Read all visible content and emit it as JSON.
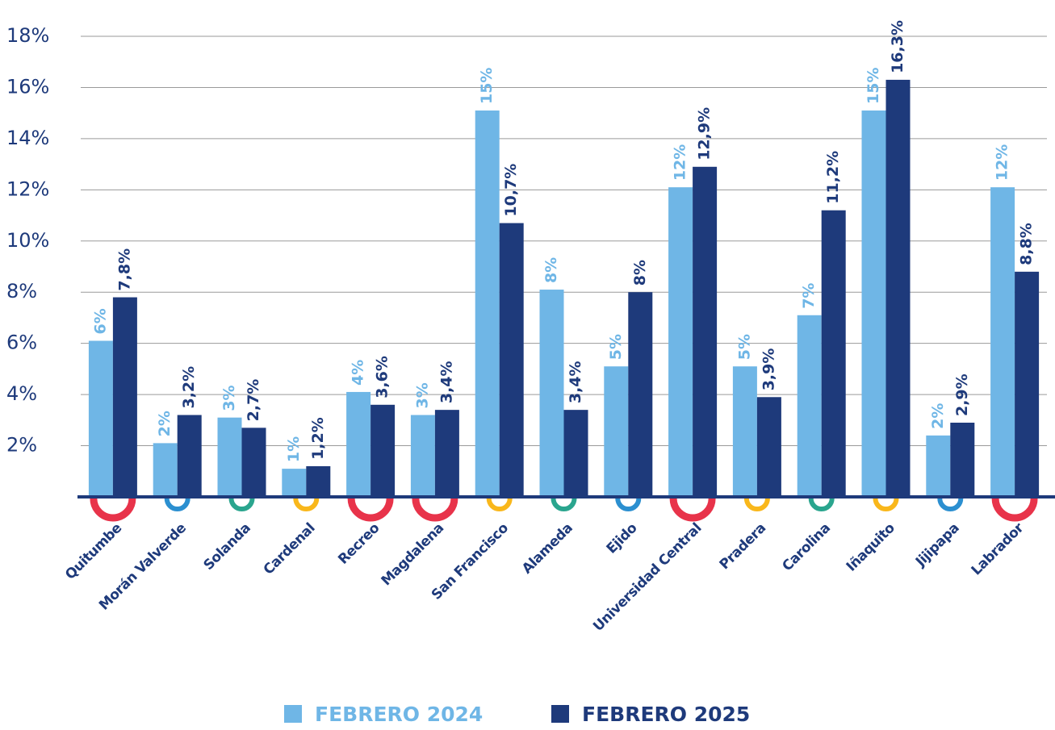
{
  "chart_data": {
    "type": "bar",
    "categories": [
      "Quitumbe",
      "Morán Valverde",
      "Solanda",
      "Cardenal",
      "Recreo",
      "Magdalena",
      "San Francisco",
      "Alameda",
      "Ejido",
      "Universidad Central",
      "Pradera",
      "Carolina",
      "Iñaquito",
      "Jijipapa",
      "Labrador"
    ],
    "series": [
      {
        "name": "FEBRERO 2024",
        "color": "#6fb6e6",
        "values": [
          6.1,
          2.1,
          3.1,
          1.1,
          4.1,
          3.2,
          15.1,
          8.1,
          5.1,
          12.1,
          5.1,
          7.1,
          15.1,
          2.4,
          12.1
        ],
        "value_labels": [
          "6%",
          "2%",
          "3%",
          "1%",
          "4%",
          "3%",
          "15%",
          "8%",
          "5%",
          "12%",
          "5%",
          "7%",
          "15%",
          "2%",
          "12%"
        ]
      },
      {
        "name": "FEBRERO 2025",
        "color": "#1e3a7b",
        "values": [
          7.8,
          3.2,
          2.7,
          1.2,
          3.6,
          3.4,
          10.7,
          3.4,
          8,
          12.9,
          3.9,
          11.2,
          16.3,
          2.9,
          8.8
        ],
        "value_labels": [
          "7,8%",
          "3,2%",
          "2,7%",
          "1,2%",
          "3,6%",
          "3,4%",
          "10,7%",
          "3,4%",
          "8%",
          "12,9%",
          "3,9%",
          "11,2%",
          "16,3%",
          "2,9%",
          "8,8%"
        ]
      }
    ],
    "ylim": [
      0,
      18
    ],
    "yticks": [
      {
        "value": 2,
        "label": "2%"
      },
      {
        "value": 4,
        "label": "4%"
      },
      {
        "value": 6,
        "label": "6%"
      },
      {
        "value": 8,
        "label": "8%"
      },
      {
        "value": 10,
        "label": "10%"
      },
      {
        "value": 12,
        "label": "12%"
      },
      {
        "value": 14,
        "label": "14%"
      },
      {
        "value": 16,
        "label": "16%"
      },
      {
        "value": 18,
        "label": "18%"
      }
    ],
    "grid": true,
    "legend": "bottom"
  }
}
